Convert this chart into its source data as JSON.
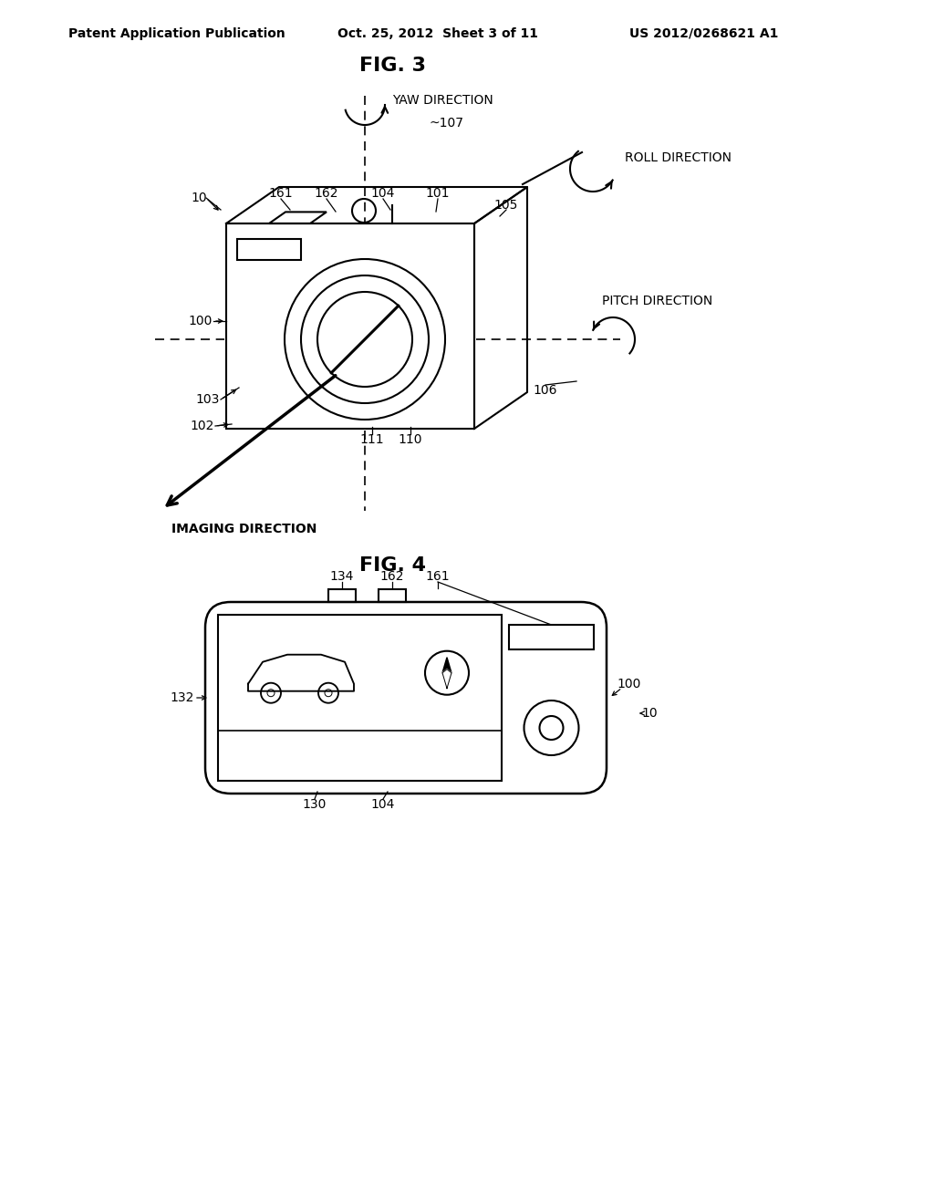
{
  "bg_color": "#ffffff",
  "header_text": "Patent Application Publication",
  "header_date": "Oct. 25, 2012  Sheet 3 of 11",
  "header_patent": "US 2012/0268621 A1",
  "fig3_title": "FIG. 3",
  "fig4_title": "FIG. 4",
  "line_color": "#000000",
  "font_family": "DejaVu Sans"
}
